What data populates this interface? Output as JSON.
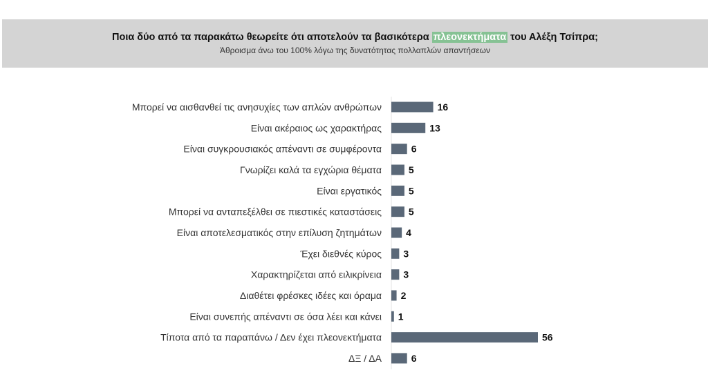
{
  "chart_data": {
    "type": "bar",
    "orientation": "horizontal",
    "title_parts": [
      "Ποια δύο από τα παρακάτω θεωρείτε ότι αποτελούν τα βασικότερα ",
      "πλεονεκτήματα",
      " του Αλέξη Τσίπρα;"
    ],
    "subtitle": "Άθροισμα άνω του 100% λόγω της δυνατότητας πολλαπλών απαντήσεων",
    "categories": [
      "Μπορεί να αισθανθεί τις ανησυχίες των απλών ανθρώπων",
      "Είναι ακέραιος ως χαρακτήρας",
      "Είναι συγκρουσιακός απέναντι σε συμφέροντα",
      "Γνωρίζει καλά τα εγχώρια θέματα",
      "Είναι εργατικός",
      "Μπορεί να ανταπεξέλθει σε πιεστικές καταστάσεις",
      "Είναι αποτελεσματικός στην επίλυση ζητημάτων",
      "Έχει διεθνές κύρος",
      "Χαρακτηρίζεται από ειλικρίνεια",
      "Διαθέτει φρέσκες ιδέες και όραμα",
      "Είναι συνεπής απέναντι σε όσα λέει και κάνει",
      "Τίποτα από τα παραπάνω / Δεν έχει πλεονεκτήματα",
      "ΔΞ / ΔΑ"
    ],
    "values": [
      16,
      13,
      6,
      5,
      5,
      5,
      4,
      3,
      3,
      2,
      1,
      56,
      6
    ],
    "xlim": [
      0,
      56
    ],
    "grid": false,
    "colors": {
      "bar": "#5a6878",
      "highlight": "#86c294",
      "header_bg": "#d4d4d4"
    }
  }
}
